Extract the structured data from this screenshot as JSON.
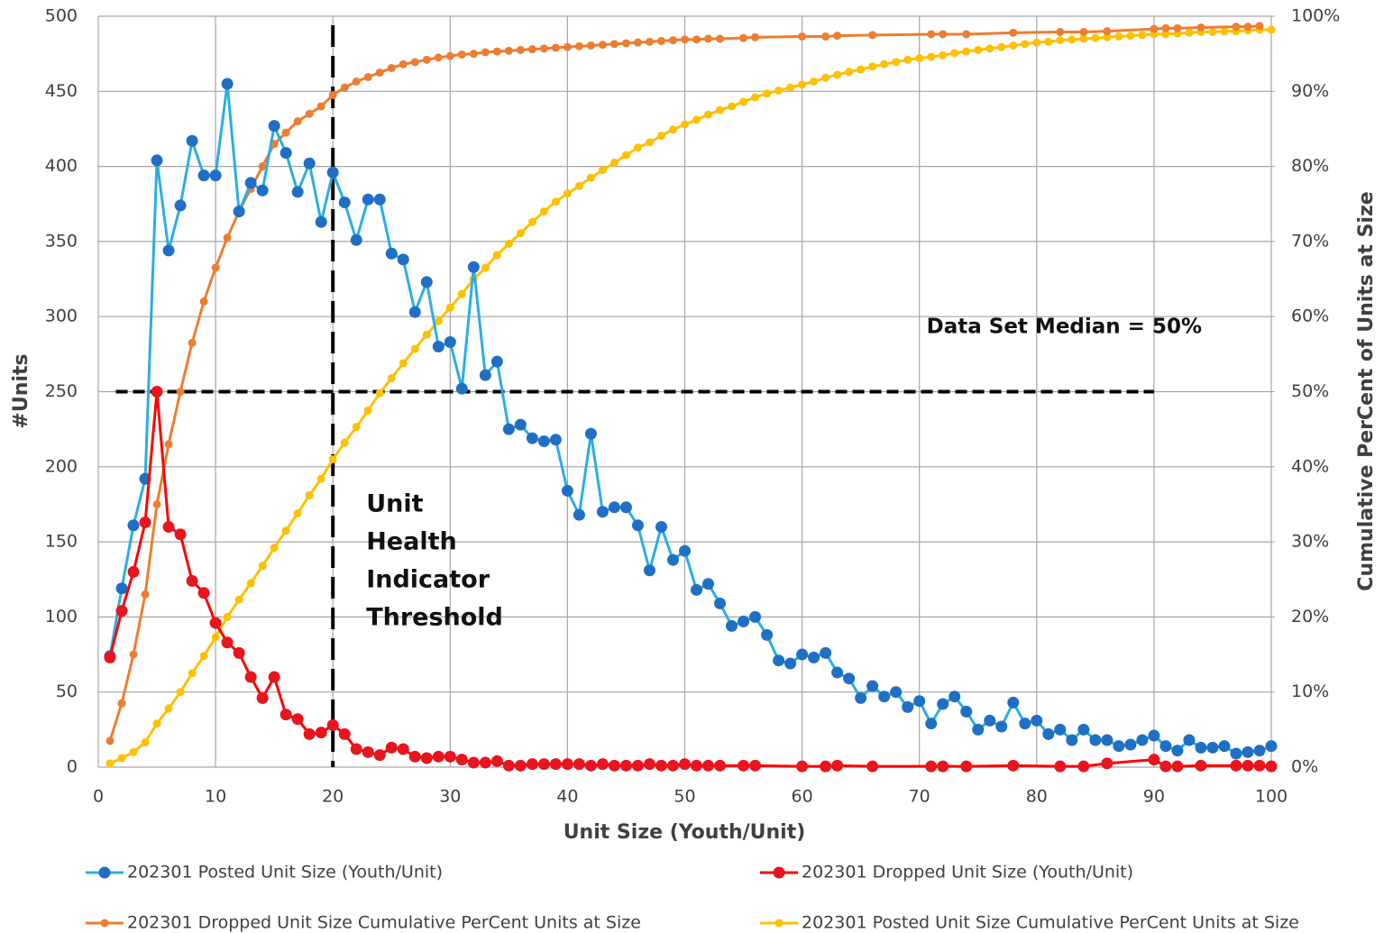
{
  "chart_data": {
    "type": "line",
    "xlabel": "Unit Size (Youth/Unit)",
    "ylabel": "#Units",
    "y2label": "Cumulative PerCent of Units at Size",
    "xlim": [
      0,
      100
    ],
    "xticks": [
      0,
      10,
      20,
      30,
      40,
      50,
      60,
      70,
      80,
      90,
      100
    ],
    "ylim": [
      0,
      500
    ],
    "yticks": [
      0,
      50,
      100,
      150,
      200,
      250,
      300,
      350,
      400,
      450,
      500
    ],
    "y2lim": [
      0,
      100
    ],
    "y2ticks": [
      {
        "value": 0,
        "label": "0%"
      },
      {
        "value": 10,
        "label": "10%"
      },
      {
        "value": 20,
        "label": "20%"
      },
      {
        "value": 30,
        "label": "30%"
      },
      {
        "value": 40,
        "label": "40%"
      },
      {
        "value": 50,
        "label": "50%"
      },
      {
        "value": 60,
        "label": "60%"
      },
      {
        "value": 70,
        "label": "70%"
      },
      {
        "value": 80,
        "label": "80%"
      },
      {
        "value": 90,
        "label": "90%"
      },
      {
        "value": 100,
        "label": "100%"
      }
    ],
    "grid": true,
    "legend": "bottom",
    "vline": {
      "x": 20,
      "text": [
        "Unit",
        "Health",
        "Indicator",
        "Threshold"
      ]
    },
    "hline": {
      "y2": 50,
      "x": [
        1.5,
        90
      ],
      "text": "Data Set Median = 50%"
    },
    "series": [
      {
        "name": "202301 Posted Unit Size (Youth/Unit)",
        "color": "#2aaee3",
        "marker_color": "#1f6fc5",
        "marker_size": 6.5,
        "x": [
          1,
          2,
          3,
          4,
          5,
          6,
          7,
          8,
          9,
          10,
          11,
          12,
          13,
          14,
          15,
          16,
          17,
          18,
          19,
          20,
          21,
          22,
          23,
          24,
          25,
          26,
          27,
          28,
          29,
          30,
          31,
          32,
          33,
          34,
          35,
          36,
          37,
          38,
          39,
          40,
          41,
          42,
          43,
          44,
          45,
          46,
          47,
          48,
          49,
          50,
          51,
          52,
          53,
          54,
          55,
          56,
          57,
          58,
          59,
          60,
          61,
          62,
          63,
          64,
          65,
          66,
          67,
          68,
          69,
          70,
          71,
          72,
          73,
          74,
          75,
          76,
          77,
          78,
          79,
          80,
          81,
          82,
          83,
          84,
          85,
          86,
          87,
          88,
          89,
          90,
          91,
          92,
          93,
          94,
          95,
          96,
          97,
          98,
          99,
          100
        ],
        "values": [
          74,
          119,
          161,
          192,
          404,
          344,
          374,
          417,
          394,
          394,
          455,
          370,
          389,
          384,
          427,
          409,
          383,
          402,
          363,
          396,
          376,
          351,
          378,
          378,
          342,
          338,
          303,
          323,
          280,
          283,
          252,
          333,
          261,
          270,
          225,
          228,
          219,
          217,
          218,
          184,
          168,
          222,
          170,
          173,
          173,
          161,
          131,
          160,
          138,
          144,
          118,
          122,
          109,
          94,
          97,
          100,
          88,
          71,
          69,
          75,
          73,
          76,
          63,
          59,
          46,
          54,
          47,
          50,
          40,
          44,
          29,
          42,
          47,
          37,
          25,
          31,
          27,
          43,
          29,
          31,
          22,
          25,
          18,
          25,
          18,
          18,
          14,
          15,
          18,
          21,
          14,
          11,
          18,
          13,
          13,
          14,
          9,
          10,
          11,
          14
        ]
      },
      {
        "name": "202301 Dropped Unit Size (Youth/Unit)",
        "color": "#ff0000",
        "marker_color": "#e8141e",
        "marker_size": 6.5,
        "x": [
          1,
          2,
          3,
          4,
          5,
          6,
          7,
          8,
          9,
          10,
          11,
          12,
          13,
          14,
          15,
          16,
          17,
          18,
          19,
          20,
          21,
          22,
          23,
          24,
          25,
          26,
          27,
          28,
          29,
          30,
          31,
          32,
          33,
          34,
          35,
          36,
          37,
          38,
          39,
          40,
          41,
          42,
          43,
          44,
          45,
          46,
          47,
          48,
          49,
          50,
          51,
          52,
          53,
          55,
          56,
          60,
          62,
          63,
          66,
          71,
          72,
          74,
          78,
          82,
          84,
          86,
          90,
          91,
          92,
          94,
          97,
          98,
          99,
          100
        ],
        "values": [
          73,
          104,
          130,
          163,
          250,
          160,
          155,
          124,
          116,
          96,
          83,
          76,
          60,
          46,
          60,
          35,
          32,
          22,
          23,
          28,
          22,
          12,
          10,
          8,
          13,
          12,
          7,
          6,
          7,
          7,
          5,
          3,
          3,
          4,
          1,
          1,
          2,
          2,
          2,
          2,
          2,
          1,
          2,
          1,
          1,
          1,
          2,
          1,
          1,
          2,
          1,
          1,
          1,
          1,
          1,
          0.5,
          0.5,
          1,
          0.5,
          0.5,
          0.5,
          0.5,
          1,
          0.5,
          0.5,
          2.5,
          5,
          0.5,
          0.5,
          1,
          1,
          1,
          1,
          0.5
        ]
      },
      {
        "name": "202301 Dropped Unit Size Cumulative PerCent Units at Size",
        "color": "#ed7d31",
        "marker_color": "#ed7d31",
        "marker_size": 4.5,
        "axis": "y2",
        "x": [
          1,
          2,
          3,
          4,
          5,
          6,
          7,
          8,
          9,
          10,
          11,
          12,
          13,
          14,
          15,
          16,
          17,
          18,
          19,
          20,
          21,
          22,
          23,
          24,
          25,
          26,
          27,
          28,
          29,
          30,
          31,
          32,
          33,
          34,
          35,
          36,
          37,
          38,
          39,
          40,
          41,
          42,
          43,
          44,
          45,
          46,
          47,
          48,
          49,
          50,
          51,
          52,
          53,
          55,
          56,
          60,
          62,
          63,
          66,
          71,
          72,
          74,
          78,
          82,
          84,
          86,
          90,
          91,
          92,
          94,
          97,
          98,
          99
        ],
        "values": [
          3.5,
          8.5,
          15,
          23,
          35,
          43,
          50,
          56.5,
          62,
          66.5,
          70.5,
          74,
          77,
          80,
          83,
          84.5,
          86,
          87,
          88,
          89.5,
          90.5,
          91.3,
          91.9,
          92.5,
          93.1,
          93.6,
          93.9,
          94.2,
          94.5,
          94.7,
          94.9,
          95,
          95.2,
          95.3,
          95.4,
          95.5,
          95.6,
          95.7,
          95.8,
          95.9,
          96,
          96.1,
          96.2,
          96.3,
          96.4,
          96.5,
          96.6,
          96.7,
          96.8,
          96.9,
          96.9,
          97,
          97,
          97.1,
          97.2,
          97.3,
          97.3,
          97.4,
          97.5,
          97.6,
          97.6,
          97.6,
          97.8,
          97.9,
          97.9,
          98,
          98.3,
          98.4,
          98.4,
          98.5,
          98.6,
          98.6,
          98.7
        ]
      },
      {
        "name": "202301 Posted Unit Size Cumulative PerCent Units at Size",
        "color": "#ffc000",
        "marker_color": "#ffc000",
        "marker_size": 4.5,
        "axis": "y2",
        "x": [
          1,
          2,
          3,
          4,
          5,
          6,
          7,
          8,
          9,
          10,
          11,
          12,
          13,
          14,
          15,
          16,
          17,
          18,
          19,
          20,
          21,
          22,
          23,
          24,
          25,
          26,
          27,
          28,
          29,
          30,
          31,
          32,
          33,
          34,
          35,
          36,
          37,
          38,
          39,
          40,
          41,
          42,
          43,
          44,
          45,
          46,
          47,
          48,
          49,
          50,
          51,
          52,
          53,
          54,
          55,
          56,
          57,
          58,
          59,
          60,
          61,
          62,
          63,
          64,
          65,
          66,
          67,
          68,
          69,
          70,
          71,
          72,
          73,
          74,
          75,
          76,
          77,
          78,
          79,
          80,
          81,
          82,
          83,
          84,
          85,
          86,
          87,
          88,
          89,
          90,
          91,
          92,
          93,
          94,
          95,
          96,
          97,
          98,
          99,
          100
        ],
        "values": [
          0.5,
          1.2,
          2,
          3.3,
          5.8,
          7.8,
          10,
          12.5,
          14.8,
          17.3,
          20,
          22.3,
          24.5,
          26.8,
          29.2,
          31.5,
          33.8,
          36.2,
          38.4,
          41,
          43.2,
          45.3,
          47.5,
          49.8,
          51.8,
          53.8,
          55.7,
          57.6,
          59.4,
          61.2,
          63,
          65,
          66.5,
          68.2,
          69.7,
          71.1,
          72.6,
          74,
          75.3,
          76.4,
          77.4,
          78.5,
          79.5,
          80.5,
          81.5,
          82.5,
          83.2,
          84.1,
          84.9,
          85.6,
          86.2,
          86.9,
          87.5,
          88,
          88.6,
          89.2,
          89.7,
          90.1,
          90.5,
          90.9,
          91.3,
          91.8,
          92.2,
          92.6,
          92.9,
          93.3,
          93.6,
          93.9,
          94.2,
          94.4,
          94.6,
          94.8,
          95.1,
          95.3,
          95.5,
          95.7,
          95.9,
          96.1,
          96.3,
          96.5,
          96.6,
          96.8,
          96.9,
          97,
          97.1,
          97.2,
          97.3,
          97.4,
          97.5,
          97.6,
          97.6,
          97.7,
          97.8,
          97.9,
          97.9,
          98,
          98,
          98.1,
          98.2,
          98.2
        ]
      }
    ]
  }
}
